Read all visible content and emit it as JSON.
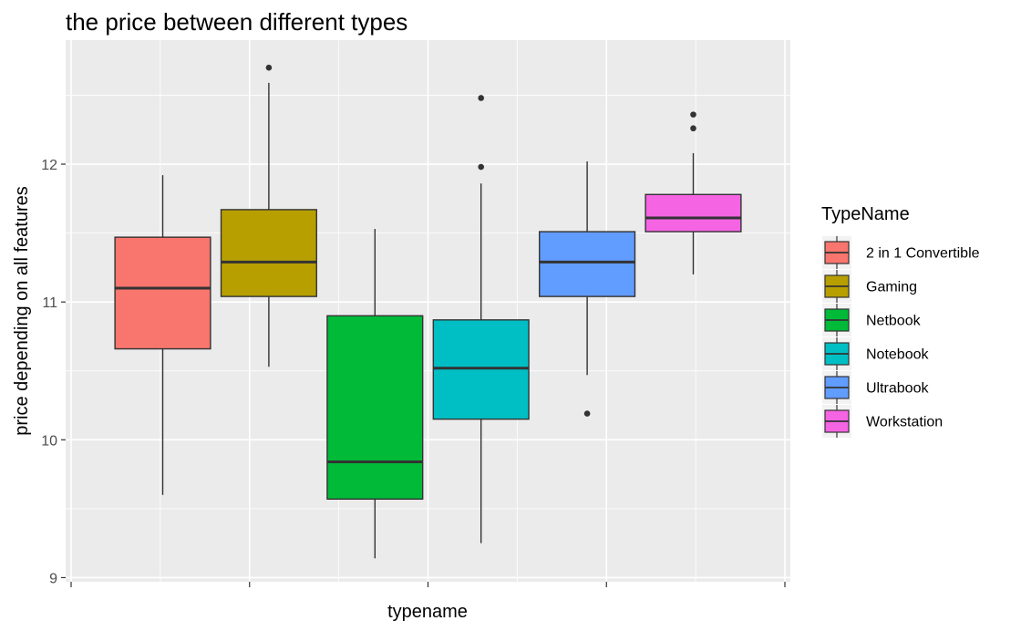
{
  "chart_data": {
    "type": "boxplot",
    "title": "the price between different types",
    "xlabel": "typename",
    "ylabel": "price depending on all features",
    "ylim": [
      8.97,
      12.9
    ],
    "yticks": [
      9,
      10,
      11,
      12
    ],
    "grid": true,
    "legend": {
      "title": "TypeName",
      "placement": "right"
    },
    "series": [
      {
        "name": "2 in 1 Convertible",
        "color": "#F8766D",
        "whisker_low": 9.6,
        "q1": 10.66,
        "median": 11.1,
        "q3": 11.47,
        "whisker_high": 11.92,
        "outliers": []
      },
      {
        "name": "Gaming",
        "color": "#B79F00",
        "whisker_low": 10.53,
        "q1": 11.04,
        "median": 11.29,
        "q3": 11.67,
        "whisker_high": 12.59,
        "outliers": [
          12.7
        ]
      },
      {
        "name": "Netbook",
        "color": "#00BA38",
        "whisker_low": 9.14,
        "q1": 9.57,
        "median": 9.84,
        "q3": 10.9,
        "whisker_high": 11.53,
        "outliers": []
      },
      {
        "name": "Notebook",
        "color": "#00BFC4",
        "whisker_low": 9.25,
        "q1": 10.15,
        "median": 10.52,
        "q3": 10.87,
        "whisker_high": 11.86,
        "outliers": [
          11.98,
          12.48
        ]
      },
      {
        "name": "Ultrabook",
        "color": "#619CFF",
        "whisker_low": 10.47,
        "q1": 11.04,
        "median": 11.29,
        "q3": 11.51,
        "whisker_high": 12.02,
        "outliers": [
          10.19
        ]
      },
      {
        "name": "Workstation",
        "color": "#F564E3",
        "whisker_low": 11.2,
        "q1": 11.51,
        "median": 11.61,
        "q3": 11.78,
        "whisker_high": 12.08,
        "outliers": [
          12.26,
          12.36
        ]
      }
    ]
  }
}
